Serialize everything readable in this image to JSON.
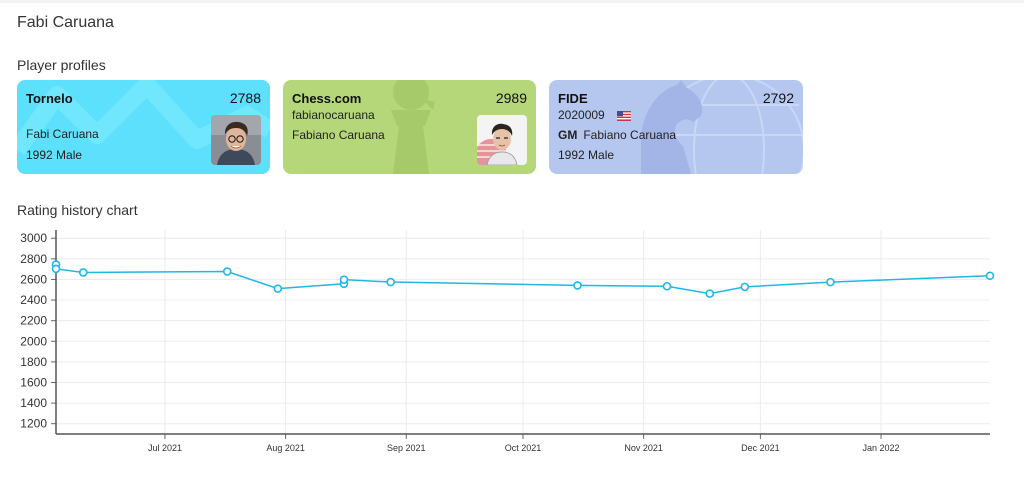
{
  "page": {
    "title": "Fabi Caruana"
  },
  "profiles_section": {
    "title": "Player profiles"
  },
  "chart_section": {
    "title": "Rating history chart"
  },
  "cards": {
    "tornelo": {
      "name": "Tornelo",
      "rating": "2788",
      "full_name": "Fabi Caruana",
      "details": "1992 Male",
      "color": "#5ce0fb"
    },
    "chesscom": {
      "name": "Chess.com",
      "rating": "2989",
      "username": "fabianocaruana",
      "full_name": "Fabiano Caruana",
      "color": "#b6d779"
    },
    "fide": {
      "name": "FIDE",
      "rating": "2792",
      "fide_id": "2020009",
      "title": "GM",
      "full_name": "Fabiano Caruana",
      "details": "1992 Male",
      "flag_icon": "us-flag-icon",
      "color": "#b5c7ef"
    }
  },
  "chart_data": {
    "type": "line",
    "title": "",
    "xlabel": "",
    "ylabel": "",
    "x_ticks": [
      "Jul 2021",
      "Aug 2021",
      "Sep 2021",
      "Oct 2021",
      "Nov 2021",
      "Dec 2021",
      "Jan 2022"
    ],
    "y_ticks": [
      "1200",
      "1400",
      "1600",
      "1800",
      "2000",
      "2200",
      "2400",
      "2600",
      "2800",
      "3000"
    ],
    "xlim": [
      "2021-06-03",
      "2022-01-29"
    ],
    "ylim": [
      1100,
      3080
    ],
    "grid": true,
    "line_color": "#1fb7e6",
    "series": [
      {
        "points": [
          {
            "x": "2021-06-03",
            "y": 2745
          },
          {
            "x": "2021-06-03",
            "y": 2703
          },
          {
            "x": "2021-06-10",
            "y": 2668
          },
          {
            "x": "2021-07-17",
            "y": 2677
          },
          {
            "x": "2021-07-30",
            "y": 2511
          },
          {
            "x": "2021-08-16",
            "y": 2558
          },
          {
            "x": "2021-08-16",
            "y": 2598
          },
          {
            "x": "2021-08-28",
            "y": 2575
          },
          {
            "x": "2021-10-15",
            "y": 2542
          },
          {
            "x": "2021-11-07",
            "y": 2534
          },
          {
            "x": "2021-11-18",
            "y": 2463
          },
          {
            "x": "2021-11-27",
            "y": 2528
          },
          {
            "x": "2021-12-19",
            "y": 2574
          },
          {
            "x": "2022-01-29",
            "y": 2636
          }
        ]
      }
    ]
  }
}
